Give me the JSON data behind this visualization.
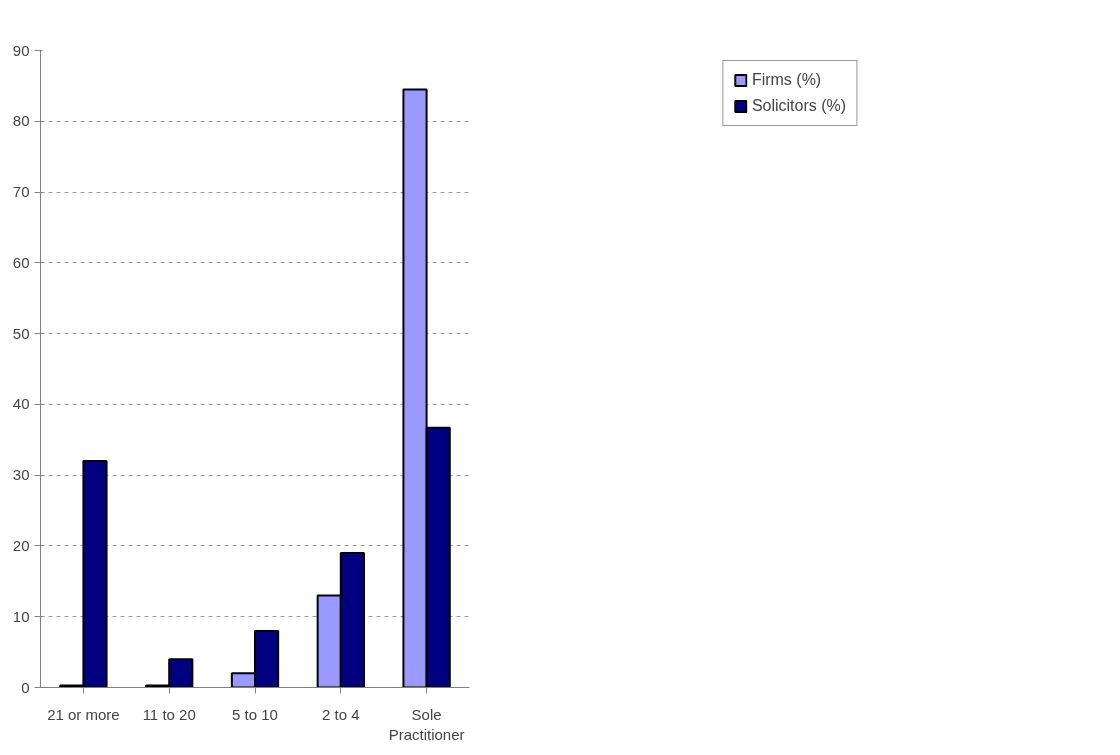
{
  "chart_data": {
    "type": "bar",
    "categories": [
      "21 or more",
      "11 to 20",
      "5 to 10",
      "2 to 4",
      "Sole\nPractitioner"
    ],
    "series": [
      {
        "name": "Firms (%)",
        "color": "#9999ff",
        "values": [
          0.3,
          0.3,
          2,
          13,
          84.5
        ]
      },
      {
        "name": "Solicitors (%)",
        "color": "#000080",
        "values": [
          32,
          4,
          8,
          19,
          36.7
        ]
      }
    ],
    "ylim": [
      0,
      90
    ],
    "yticks": [
      0,
      10,
      20,
      30,
      40,
      50,
      60,
      70,
      80,
      90
    ],
    "grid": "y",
    "legend": "top right"
  }
}
